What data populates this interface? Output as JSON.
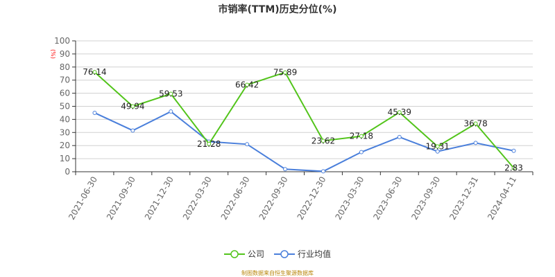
{
  "title": "市销率(TTM)历史分位(%)",
  "unit_label": "(%)",
  "legend": [
    {
      "name": "公司",
      "color": "#52c41a"
    },
    {
      "name": "行业均值",
      "color": "#4a7fdb"
    }
  ],
  "source_text": "制图数据来自恒生聚源数据库",
  "chart_data": {
    "type": "line",
    "title": "市销率(TTM)历史分位(%)",
    "xlabel": "",
    "ylabel": "(%)",
    "ylim": [
      0,
      100
    ],
    "yticks": [
      0,
      10,
      20,
      30,
      40,
      50,
      60,
      70,
      80,
      90,
      100
    ],
    "grid": true,
    "legend_position": "bottom",
    "categories": [
      "2021-06-30",
      "2021-09-30",
      "2021-12-30",
      "2022-03-30",
      "2022-06-30",
      "2022-09-30",
      "2022-12-30",
      "2023-03-30",
      "2023-06-30",
      "2023-09-30",
      "2023-12-31",
      "2024-04-11"
    ],
    "series": [
      {
        "name": "公司",
        "color": "#52c41a",
        "show_labels": true,
        "values": [
          76.14,
          49.94,
          59.53,
          21.28,
          66.42,
          75.89,
          23.62,
          27.18,
          45.39,
          19.31,
          36.78,
          2.83
        ]
      },
      {
        "name": "行业均值",
        "color": "#4a7fdb",
        "show_labels": false,
        "values": [
          45.0,
          31.5,
          46.0,
          23.0,
          21.0,
          2.0,
          0.3,
          15.0,
          26.5,
          15.5,
          22.0,
          16.0
        ]
      }
    ]
  }
}
